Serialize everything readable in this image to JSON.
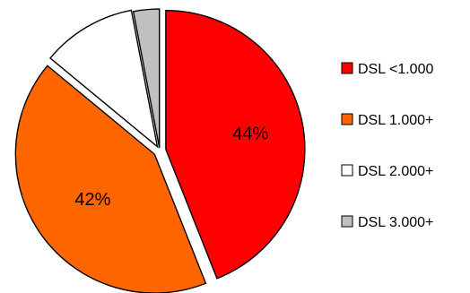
{
  "chart_data": {
    "type": "pie",
    "title": "",
    "categories": [
      "DSL <1.000",
      "DSL 1.000+",
      "DSL 2.000+",
      "DSL 3.000+"
    ],
    "values": [
      44,
      42,
      11,
      3
    ],
    "labels": [
      "44%",
      "42%",
      "",
      ""
    ],
    "colors": [
      "#ff0000",
      "#ff6600",
      "#ffffff",
      "#c0c0c0"
    ],
    "legend_position": "right",
    "exploded": true
  }
}
